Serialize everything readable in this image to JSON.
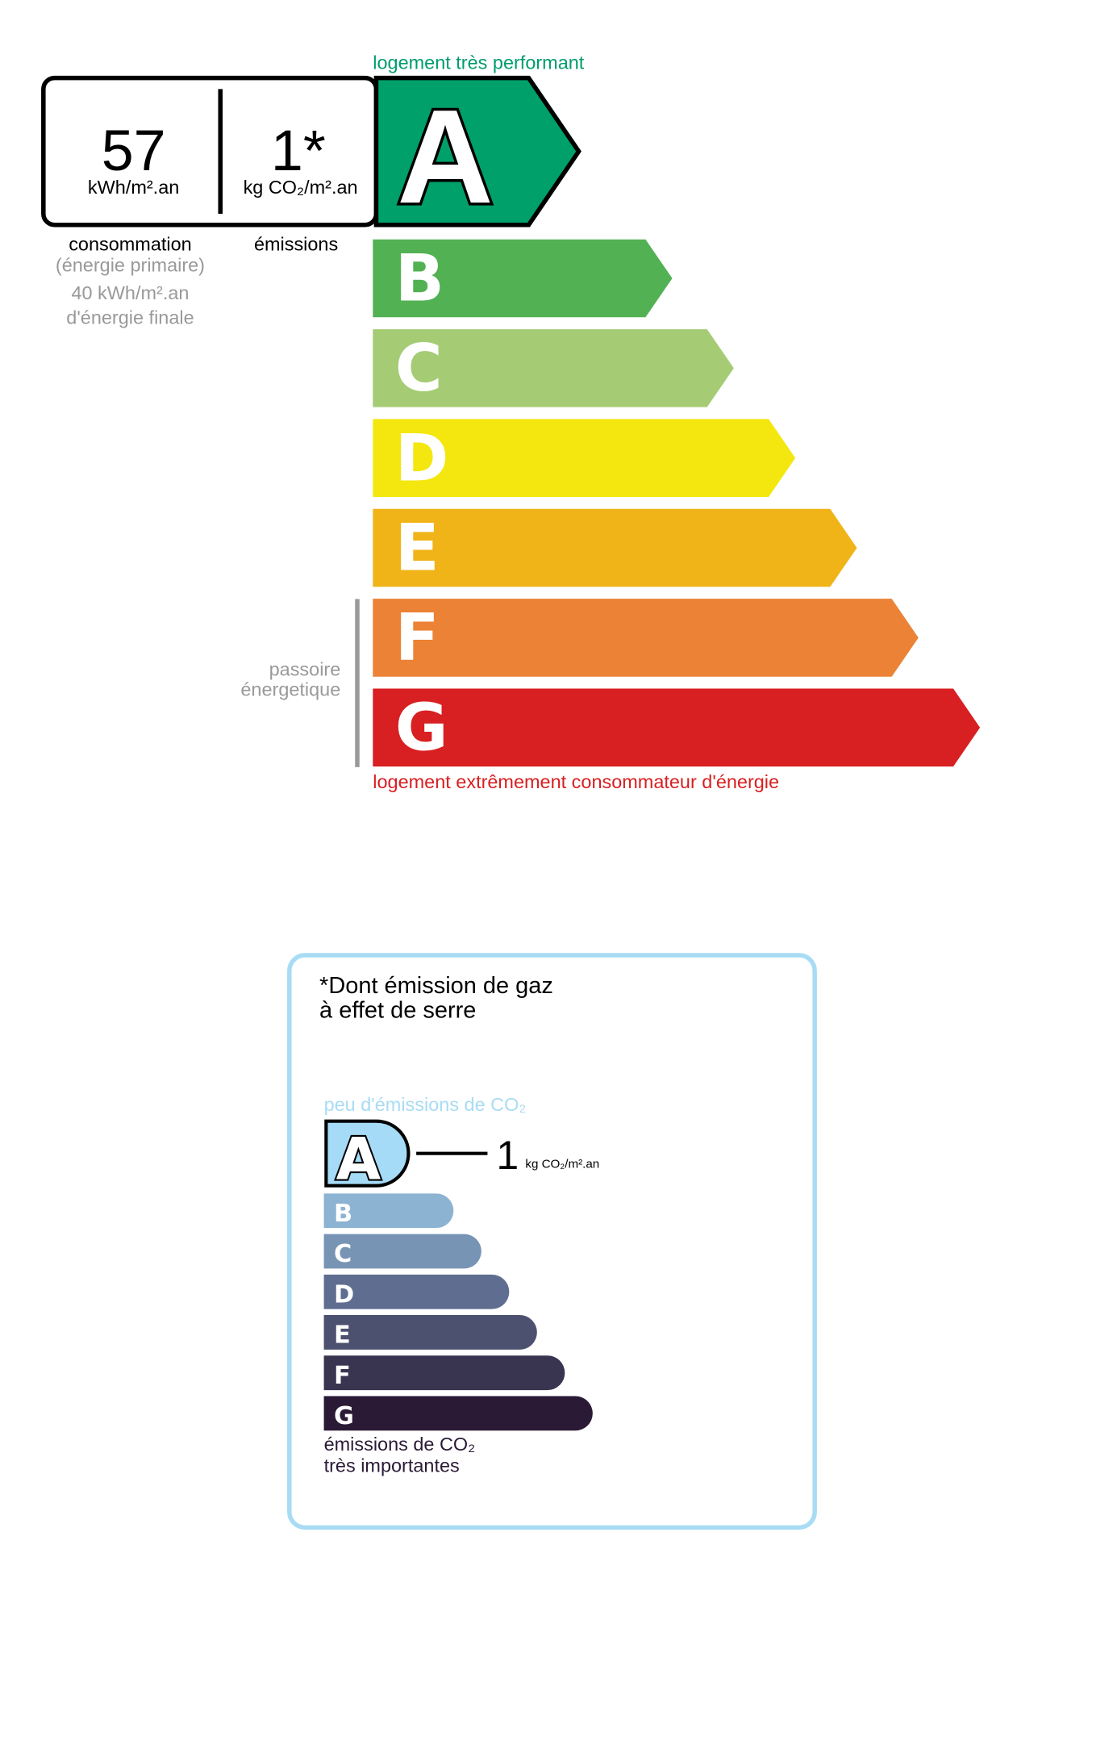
{
  "energy": {
    "top_label": "logement très performant",
    "bottom_label": "logement extrêmement consommateur d'énergie",
    "consumption_value": "57",
    "consumption_unit": "kWh/m².an",
    "emissions_value": "1*",
    "emissions_unit": "kg CO₂/m².an",
    "consumption_label": "consommation",
    "primary_label": "(énergie primaire)",
    "final_value": "40 kWh/m².an",
    "final_label": "d'énergie finale",
    "emissions_label": "émissions",
    "passoire_line1": "passoire",
    "passoire_line2": "énergetique",
    "current_class": "A",
    "classes": [
      {
        "letter": "A",
        "color": "#00a06b"
      },
      {
        "letter": "B",
        "color": "#52b153"
      },
      {
        "letter": "C",
        "color": "#a5cc74"
      },
      {
        "letter": "D",
        "color": "#f4e70f"
      },
      {
        "letter": "E",
        "color": "#f0b419"
      },
      {
        "letter": "F",
        "color": "#eb8235"
      },
      {
        "letter": "G",
        "color": "#d81f21"
      }
    ],
    "top_label_color": "#009c6d",
    "bottom_label_color": "#d81f21"
  },
  "ges": {
    "title_line1": "*Dont émission de gaz",
    "title_line2": "à effet de serre",
    "top_label": "peu d'émissions de CO₂",
    "bottom_line1": "émissions de CO₂",
    "bottom_line2": "très importantes",
    "value": "1",
    "unit": "kg CO₂/m².an",
    "current_class": "A",
    "border_color": "#a8dcf4",
    "classes": [
      {
        "letter": "A",
        "color": "#a6dbf7"
      },
      {
        "letter": "B",
        "color": "#8db3d3"
      },
      {
        "letter": "C",
        "color": "#7894b4"
      },
      {
        "letter": "D",
        "color": "#5f6e90"
      },
      {
        "letter": "E",
        "color": "#4d5170"
      },
      {
        "letter": "F",
        "color": "#393551"
      },
      {
        "letter": "G",
        "color": "#2a1a35"
      }
    ]
  }
}
